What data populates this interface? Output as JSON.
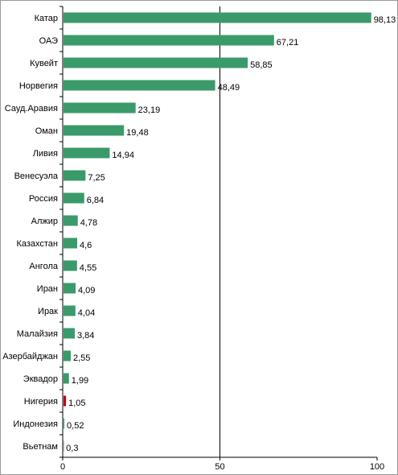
{
  "chart_data": {
    "type": "bar",
    "orientation": "horizontal",
    "categories": [
      "Катар",
      "ОАЭ",
      "Кувейт",
      "Норвегия",
      "Сауд.Аравия",
      "Оман",
      "Ливия",
      "Венесуэла",
      "Россия",
      "Алжир",
      "Казахстан",
      "Ангола",
      "Иран",
      "Ирак",
      "Малайзия",
      "Азербайджан",
      "Эквадор",
      "Нигерия",
      "Индонезия",
      "Вьетнам"
    ],
    "values": [
      98.13,
      67.21,
      58.85,
      48.49,
      23.19,
      19.48,
      14.94,
      7.25,
      6.84,
      4.78,
      4.6,
      4.55,
      4.09,
      4.04,
      3.84,
      2.55,
      1.99,
      1.05,
      0.52,
      0.3
    ],
    "value_labels": [
      "98,13",
      "67,21",
      "58,85",
      "48,49",
      "23,19",
      "19,48",
      "14,94",
      "7,25",
      "6,84",
      "4,78",
      "4,6",
      "4,55",
      "4,09",
      "4,04",
      "3,84",
      "2,55",
      "1,99",
      "1,05",
      "0,52",
      "0,3"
    ],
    "highlight_index": 17,
    "xlim": [
      0,
      100
    ],
    "xticks": [
      "0",
      "50",
      "100"
    ],
    "gridlines": [
      50
    ],
    "colors": {
      "bar": "#3a9a6a",
      "highlight": "#c00000",
      "grid": "#000000"
    }
  }
}
